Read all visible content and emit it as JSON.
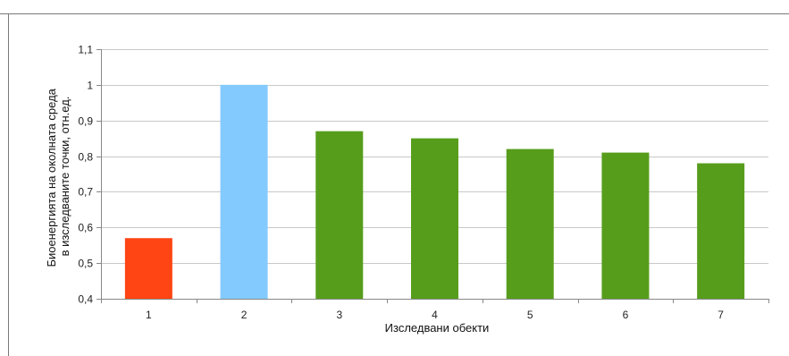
{
  "chart_data": {
    "type": "bar",
    "title": "",
    "xlabel": "Изследвани обекти",
    "ylabel_lines": [
      "Биоенергията на околната среда",
      "в изследваните точки, отн.ед."
    ],
    "categories": [
      "1",
      "2",
      "3",
      "4",
      "5",
      "6",
      "7"
    ],
    "values": [
      0.57,
      1.0,
      0.87,
      0.85,
      0.82,
      0.81,
      0.78
    ],
    "bar_colors": [
      "#ff4514",
      "#83caff",
      "#579d1c",
      "#579d1c",
      "#579d1c",
      "#579d1c",
      "#579d1c"
    ],
    "ylim": [
      0.4,
      1.1
    ],
    "yticks": [
      0.4,
      0.5,
      0.6,
      0.7,
      0.8,
      0.9,
      1.0,
      1.1
    ],
    "ytick_labels": [
      "0,4",
      "0,5",
      "0,6",
      "0,7",
      "0,8",
      "0,9",
      "1",
      "1,1"
    ],
    "grid": true,
    "legend": "none"
  }
}
